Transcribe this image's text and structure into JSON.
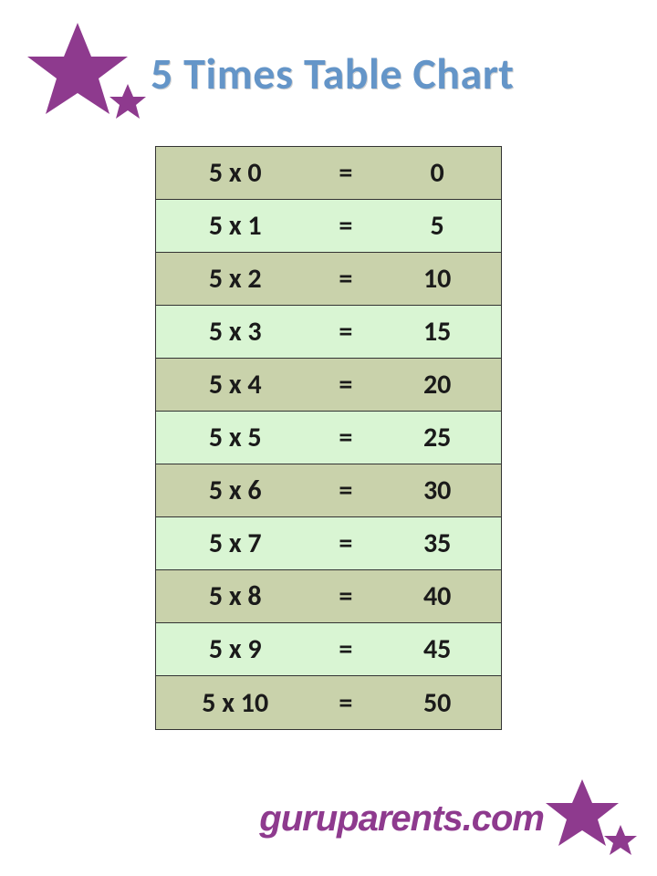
{
  "title": "5 Times Table Chart",
  "title_color": "#6495c8",
  "star_color": "#8e3a8e",
  "table": {
    "row_color_a": "#c9d2ab",
    "row_color_b": "#d9f5d3",
    "text_color": "#1a1a1a",
    "border_color": "#333333",
    "font_size": 30,
    "rows": [
      {
        "expr": "5 x 0",
        "eq": "=",
        "result": "0"
      },
      {
        "expr": "5 x 1",
        "eq": "=",
        "result": "5"
      },
      {
        "expr": "5 x 2",
        "eq": "=",
        "result": "10"
      },
      {
        "expr": "5 x 3",
        "eq": "=",
        "result": "15"
      },
      {
        "expr": "5 x 4",
        "eq": "=",
        "result": "20"
      },
      {
        "expr": "5 x 5",
        "eq": "=",
        "result": "25"
      },
      {
        "expr": "5 x 6",
        "eq": "=",
        "result": "30"
      },
      {
        "expr": "5 x 7",
        "eq": "=",
        "result": "35"
      },
      {
        "expr": "5 x 8",
        "eq": "=",
        "result": "40"
      },
      {
        "expr": "5 x 9",
        "eq": "=",
        "result": "45"
      },
      {
        "expr": "5 x 10",
        "eq": "=",
        "result": "50"
      }
    ]
  },
  "footer": {
    "text": "guruparents.com",
    "color": "#8e3a8e"
  }
}
